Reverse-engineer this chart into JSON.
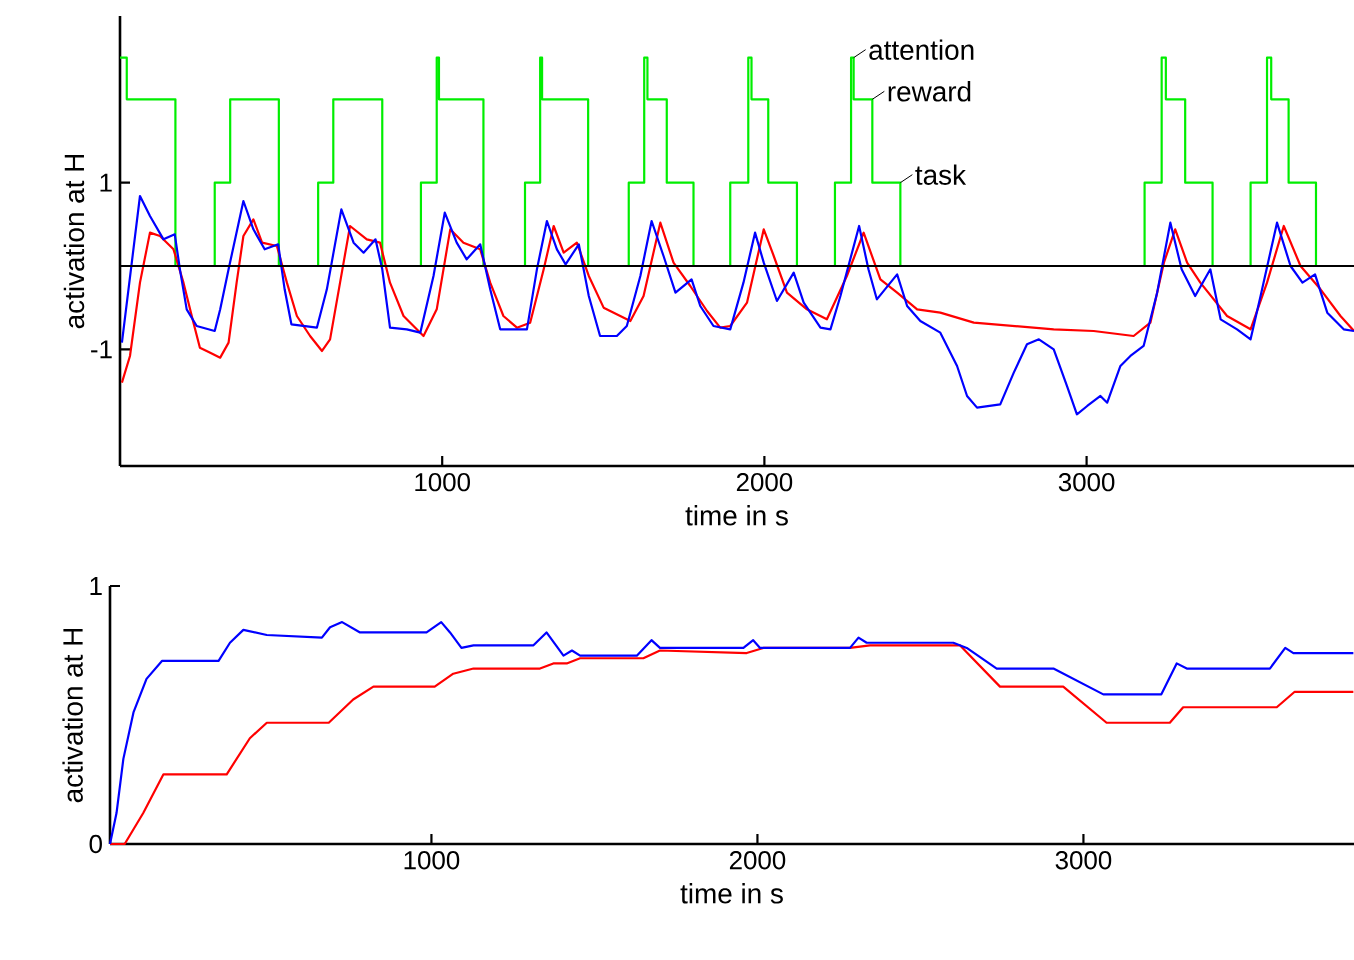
{
  "chart_data": [
    {
      "type": "line",
      "xlabel": "time in s",
      "ylabel": "activation at H",
      "xlim": [
        0,
        3830
      ],
      "ylim": [
        -2.4,
        3
      ],
      "xticks": [
        1000,
        2000,
        3000
      ],
      "yticks": [
        -1,
        1
      ],
      "marker": "none",
      "series": [
        {
          "type": "step",
          "color": "#00ee00",
          "x": [
            0,
            21,
            172,
            294,
            342,
            493,
            615,
            662,
            814,
            934,
            983,
            990,
            1128,
            1257,
            1304,
            1310,
            1453,
            1579,
            1627,
            1637,
            1697,
            1780,
            1894,
            1950,
            1960,
            2012,
            2101,
            2219,
            2269,
            2277,
            2335,
            2422,
            3180,
            3233,
            3246,
            3306,
            3391,
            3509,
            3560,
            3573,
            3627,
            3712,
            3830
          ],
          "values": [
            2.5,
            2,
            0,
            1,
            2,
            0,
            1,
            2,
            0,
            1,
            2.5,
            2,
            0,
            1,
            2.5,
            2,
            0,
            1,
            2.5,
            2,
            1,
            0,
            1,
            2.5,
            2,
            1,
            0,
            1,
            2.5,
            2,
            1,
            0,
            1,
            2.5,
            2,
            1,
            0,
            1,
            2.5,
            2,
            1,
            0,
            0
          ]
        },
        {
          "color": "#ff0000",
          "x": [
            6,
            31,
            62,
            93,
            124,
            166,
            197,
            228,
            248,
            280,
            311,
            337,
            362,
            383,
            414,
            441,
            487,
            518,
            549,
            590,
            627,
            652,
            683,
            714,
            766,
            807,
            838,
            880,
            942,
            983,
            1025,
            1066,
            1118,
            1149,
            1190,
            1232,
            1273,
            1315,
            1346,
            1377,
            1418,
            1455,
            1501,
            1584,
            1625,
            1677,
            1718,
            1770,
            1822,
            1863,
            1894,
            1946,
            1998,
            2029,
            2070,
            2132,
            2194,
            2256,
            2308,
            2360,
            2412,
            2474,
            2546,
            2650,
            2774,
            2898,
            3022,
            3146,
            3198,
            3240,
            3275,
            3312,
            3353,
            3436,
            3509,
            3560,
            3612,
            3664,
            3726,
            3788,
            3830
          ],
          "values": [
            -1.4,
            -1.08,
            -0.2,
            0.4,
            0.36,
            0.2,
            -0.2,
            -0.68,
            -0.98,
            -1.04,
            -1.1,
            -0.92,
            -0.2,
            0.36,
            0.56,
            0.28,
            0.24,
            -0.2,
            -0.6,
            -0.84,
            -1.02,
            -0.88,
            -0.2,
            0.48,
            0.32,
            0.28,
            -0.2,
            -0.6,
            -0.84,
            -0.52,
            0.44,
            0.28,
            0.2,
            -0.2,
            -0.6,
            -0.74,
            -0.68,
            -0.04,
            0.48,
            0.16,
            0.28,
            -0.12,
            -0.5,
            -0.66,
            -0.36,
            0.52,
            0.04,
            -0.24,
            -0.54,
            -0.74,
            -0.72,
            -0.44,
            0.44,
            0.12,
            -0.32,
            -0.52,
            -0.64,
            -0.12,
            0.4,
            -0.16,
            -0.32,
            -0.52,
            -0.56,
            -0.68,
            -0.72,
            -0.76,
            -0.78,
            -0.84,
            -0.68,
            0.04,
            0.44,
            0.04,
            -0.2,
            -0.6,
            -0.76,
            -0.2,
            0.48,
            0,
            -0.28,
            -0.6,
            -0.78
          ]
        },
        {
          "color": "#0000ff",
          "x": [
            6,
            62,
            93,
            135,
            170,
            186,
            207,
            238,
            294,
            311,
            337,
            383,
            414,
            449,
            491,
            511,
            532,
            611,
            642,
            687,
            725,
            756,
            793,
            814,
            838,
            890,
            932,
            973,
            1008,
            1045,
            1076,
            1118,
            1149,
            1180,
            1263,
            1294,
            1325,
            1356,
            1383,
            1424,
            1455,
            1490,
            1542,
            1573,
            1615,
            1650,
            1687,
            1724,
            1774,
            1801,
            1842,
            1894,
            1935,
            1971,
            1998,
            2039,
            2091,
            2122,
            2174,
            2205,
            2236,
            2294,
            2323,
            2349,
            2412,
            2443,
            2484,
            2546,
            2598,
            2629,
            2660,
            2732,
            2774,
            2815,
            2852,
            2898,
            2939,
            2970,
            3002,
            3043,
            3064,
            3105,
            3136,
            3177,
            3219,
            3260,
            3295,
            3337,
            3384,
            3416,
            3467,
            3509,
            3540,
            3591,
            3633,
            3670,
            3709,
            3747,
            3798,
            3830
          ],
          "values": [
            -0.92,
            0.84,
            0.6,
            0.32,
            0.38,
            -0.04,
            -0.52,
            -0.72,
            -0.78,
            -0.52,
            -0.04,
            0.78,
            0.44,
            0.2,
            0.26,
            -0.28,
            -0.7,
            -0.74,
            -0.28,
            0.68,
            0.28,
            0.16,
            0.32,
            -0.04,
            -0.74,
            -0.76,
            -0.8,
            -0.12,
            0.64,
            0.28,
            0.08,
            0.26,
            -0.28,
            -0.76,
            -0.76,
            -0.04,
            0.54,
            0.2,
            0.02,
            0.26,
            -0.36,
            -0.84,
            -0.84,
            -0.72,
            -0.12,
            0.54,
            0.12,
            -0.32,
            -0.16,
            -0.48,
            -0.72,
            -0.76,
            -0.2,
            0.4,
            0.04,
            -0.42,
            -0.08,
            -0.44,
            -0.74,
            -0.76,
            -0.36,
            0.48,
            -0.04,
            -0.4,
            -0.1,
            -0.48,
            -0.66,
            -0.8,
            -1.2,
            -1.56,
            -1.7,
            -1.66,
            -1.28,
            -0.94,
            -0.88,
            -1.0,
            -1.44,
            -1.78,
            -1.68,
            -1.56,
            -1.64,
            -1.2,
            -1.08,
            -0.96,
            -0.32,
            0.52,
            -0.04,
            -0.36,
            -0.04,
            -0.64,
            -0.76,
            -0.88,
            -0.36,
            0.52,
            0,
            -0.2,
            -0.1,
            -0.56,
            -0.76,
            -0.78
          ]
        }
      ],
      "ref_lines": [
        {
          "axis": "y",
          "value": 0,
          "color": "#000000"
        }
      ],
      "annotations": [
        {
          "text": "attention",
          "x": 2277,
          "y": 2.5
        },
        {
          "text": "reward",
          "x": 2335,
          "y": 2
        },
        {
          "text": "task",
          "x": 2422,
          "y": 1
        }
      ]
    },
    {
      "type": "line",
      "xlabel": "time in s",
      "ylabel": "activation at H",
      "xlim": [
        14,
        3830
      ],
      "ylim": [
        0,
        1
      ],
      "xticks": [
        1000,
        2000,
        3000
      ],
      "yticks": [
        0,
        1
      ],
      "marker": "none",
      "series": [
        {
          "color": "#ff0000",
          "x": [
            14,
            59,
            116,
            178,
            372,
            443,
            495,
            685,
            760,
            822,
            1010,
            1067,
            1129,
            1333,
            1374,
            1415,
            1456,
            1650,
            1701,
            1967,
            2018,
            2284,
            2345,
            2621,
            2744,
            2938,
            3071,
            3265,
            3306,
            3593,
            3648,
            3828
          ],
          "values": [
            0,
            0,
            0.12,
            0.27,
            0.27,
            0.41,
            0.47,
            0.47,
            0.56,
            0.61,
            0.61,
            0.66,
            0.68,
            0.68,
            0.7,
            0.7,
            0.72,
            0.72,
            0.75,
            0.74,
            0.76,
            0.76,
            0.77,
            0.77,
            0.61,
            0.61,
            0.47,
            0.47,
            0.53,
            0.53,
            0.59,
            0.59
          ]
        },
        {
          "color": "#0000ff",
          "x": [
            14,
            34,
            55,
            86,
            126,
            174,
            347,
            382,
            423,
            495,
            664,
            689,
            726,
            781,
            985,
            1030,
            1057,
            1092,
            1129,
            1313,
            1353,
            1405,
            1431,
            1456,
            1630,
            1675,
            1701,
            1957,
            1987,
            2008,
            2284,
            2310,
            2335,
            2601,
            2642,
            2734,
            2908,
            3061,
            3239,
            3286,
            3317,
            3572,
            3619,
            3644,
            3828
          ],
          "values": [
            0,
            0.12,
            0.33,
            0.51,
            0.64,
            0.71,
            0.71,
            0.78,
            0.83,
            0.81,
            0.8,
            0.84,
            0.86,
            0.82,
            0.82,
            0.86,
            0.82,
            0.76,
            0.77,
            0.77,
            0.82,
            0.73,
            0.75,
            0.73,
            0.73,
            0.79,
            0.76,
            0.76,
            0.79,
            0.76,
            0.76,
            0.8,
            0.78,
            0.78,
            0.76,
            0.68,
            0.68,
            0.58,
            0.58,
            0.7,
            0.68,
            0.68,
            0.76,
            0.74,
            0.74
          ]
        }
      ]
    }
  ]
}
